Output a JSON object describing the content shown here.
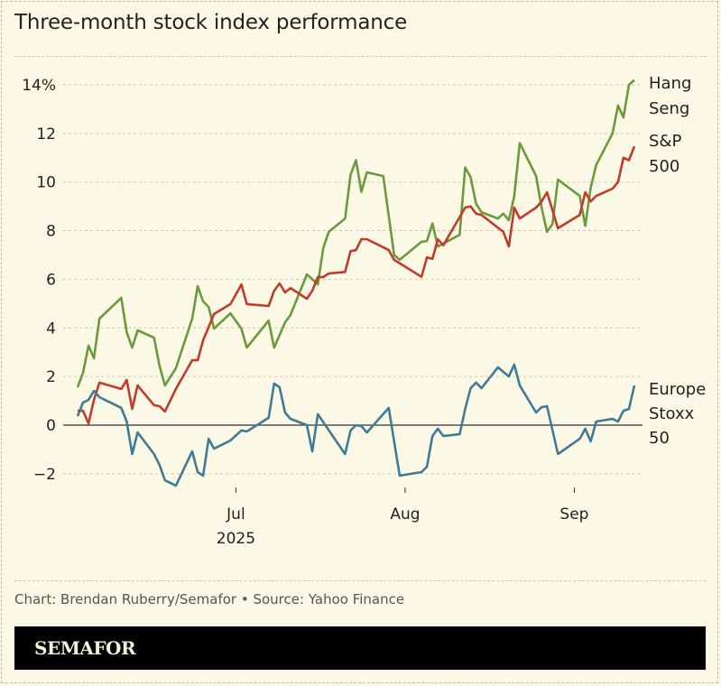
{
  "title": "Three-month stock index performance",
  "source": "Chart: Brendan Ruberry/Semafor • Source: Yahoo Finance",
  "brand": "SEMAFOR",
  "chart_data": {
    "type": "line",
    "title": "Three-month stock index performance",
    "xlabel": "",
    "ylabel": "",
    "xlim": [
      "2025-06-02",
      "2025-09-12"
    ],
    "ylim": [
      -2.5,
      14.5
    ],
    "grid": true,
    "legend": "direct labels at right end of lines",
    "y_ticks": [
      -2,
      0,
      2,
      4,
      6,
      8,
      10,
      12,
      14
    ],
    "y_tick_labels": [
      "−2",
      "0",
      "2",
      "4",
      "6",
      "8",
      "10",
      "12",
      "14%"
    ],
    "x_ticks": [
      {
        "date": "2025-07-01",
        "label": "Jul",
        "sublabel": "2025"
      },
      {
        "date": "2025-08-01",
        "label": "Aug",
        "sublabel": ""
      },
      {
        "date": "2025-09-01",
        "label": "Sep",
        "sublabel": ""
      }
    ],
    "series": [
      {
        "name": "Hang Seng",
        "label_lines": [
          "Hang",
          "Seng"
        ],
        "color": "#6a9a3c",
        "points": [
          [
            "2025-06-02",
            1.56
          ],
          [
            "2025-06-03",
            2.15
          ],
          [
            "2025-06-04",
            3.27
          ],
          [
            "2025-06-05",
            2.75
          ],
          [
            "2025-06-06",
            4.38
          ],
          [
            "2025-06-10",
            5.24
          ],
          [
            "2025-06-11",
            3.82
          ],
          [
            "2025-06-12",
            3.19
          ],
          [
            "2025-06-13",
            3.9
          ],
          [
            "2025-06-16",
            3.6
          ],
          [
            "2025-06-17",
            2.45
          ],
          [
            "2025-06-18",
            1.63
          ],
          [
            "2025-06-20",
            2.34
          ],
          [
            "2025-06-23",
            4.38
          ],
          [
            "2025-06-24",
            5.72
          ],
          [
            "2025-06-25",
            5.09
          ],
          [
            "2025-06-26",
            4.86
          ],
          [
            "2025-06-27",
            3.97
          ],
          [
            "2025-06-30",
            4.6
          ],
          [
            "2025-07-02",
            3.97
          ],
          [
            "2025-07-03",
            3.19
          ],
          [
            "2025-07-07",
            4.3
          ],
          [
            "2025-07-08",
            3.19
          ],
          [
            "2025-07-10",
            4.23
          ],
          [
            "2025-07-11",
            4.53
          ],
          [
            "2025-07-14",
            6.2
          ],
          [
            "2025-07-16",
            5.79
          ],
          [
            "2025-07-17",
            7.28
          ],
          [
            "2025-07-18",
            7.95
          ],
          [
            "2025-07-21",
            8.5
          ],
          [
            "2025-07-22",
            10.3
          ],
          [
            "2025-07-23",
            10.9
          ],
          [
            "2025-07-24",
            9.6
          ],
          [
            "2025-07-25",
            10.4
          ],
          [
            "2025-07-28",
            10.25
          ],
          [
            "2025-07-30",
            7.0
          ],
          [
            "2025-07-31",
            6.8
          ],
          [
            "2025-08-04",
            7.54
          ],
          [
            "2025-08-05",
            7.57
          ],
          [
            "2025-08-06",
            8.3
          ],
          [
            "2025-08-07",
            7.35
          ],
          [
            "2025-08-11",
            7.83
          ],
          [
            "2025-08-12",
            10.6
          ],
          [
            "2025-08-13",
            10.2
          ],
          [
            "2025-08-14",
            9.1
          ],
          [
            "2025-08-15",
            8.76
          ],
          [
            "2025-08-18",
            8.5
          ],
          [
            "2025-08-19",
            8.7
          ],
          [
            "2025-08-20",
            8.43
          ],
          [
            "2025-08-21",
            9.43
          ],
          [
            "2025-08-22",
            11.6
          ],
          [
            "2025-08-25",
            10.25
          ],
          [
            "2025-08-26",
            8.95
          ],
          [
            "2025-08-27",
            7.95
          ],
          [
            "2025-08-28",
            8.28
          ],
          [
            "2025-08-29",
            10.1
          ],
          [
            "2025-09-02",
            9.43
          ],
          [
            "2025-09-03",
            8.2
          ],
          [
            "2025-09-04",
            9.77
          ],
          [
            "2025-09-05",
            10.7
          ],
          [
            "2025-09-08",
            12.0
          ],
          [
            "2025-09-09",
            13.15
          ],
          [
            "2025-09-10",
            12.66
          ],
          [
            "2025-09-11",
            14.0
          ],
          [
            "2025-09-12",
            14.2
          ]
        ]
      },
      {
        "name": "S&P 500",
        "label_lines": [
          "S&P",
          "500"
        ],
        "color": "#c23a2a",
        "points": [
          [
            "2025-06-02",
            0.59
          ],
          [
            "2025-06-03",
            0.59
          ],
          [
            "2025-06-04",
            0.07
          ],
          [
            "2025-06-05",
            1.04
          ],
          [
            "2025-06-06",
            1.75
          ],
          [
            "2025-06-10",
            1.49
          ],
          [
            "2025-06-11",
            1.86
          ],
          [
            "2025-06-12",
            0.67
          ],
          [
            "2025-06-13",
            1.63
          ],
          [
            "2025-06-16",
            0.82
          ],
          [
            "2025-06-17",
            0.78
          ],
          [
            "2025-06-18",
            0.56
          ],
          [
            "2025-06-20",
            1.49
          ],
          [
            "2025-06-23",
            2.67
          ],
          [
            "2025-06-24",
            2.67
          ],
          [
            "2025-06-25",
            3.49
          ],
          [
            "2025-06-27",
            4.57
          ],
          [
            "2025-06-30",
            4.98
          ],
          [
            "2025-07-02",
            5.79
          ],
          [
            "2025-07-03",
            4.98
          ],
          [
            "2025-07-07",
            4.9
          ],
          [
            "2025-07-08",
            5.53
          ],
          [
            "2025-07-09",
            5.83
          ],
          [
            "2025-07-10",
            5.46
          ],
          [
            "2025-07-11",
            5.64
          ],
          [
            "2025-07-14",
            5.2
          ],
          [
            "2025-07-15",
            5.53
          ],
          [
            "2025-07-16",
            6.09
          ],
          [
            "2025-07-17",
            6.09
          ],
          [
            "2025-07-18",
            6.24
          ],
          [
            "2025-07-21",
            6.3
          ],
          [
            "2025-07-22",
            7.16
          ],
          [
            "2025-07-23",
            7.2
          ],
          [
            "2025-07-24",
            7.65
          ],
          [
            "2025-07-25",
            7.65
          ],
          [
            "2025-07-29",
            7.2
          ],
          [
            "2025-07-30",
            6.8
          ],
          [
            "2025-08-04",
            6.1
          ],
          [
            "2025-08-05",
            6.9
          ],
          [
            "2025-08-06",
            6.84
          ],
          [
            "2025-08-07",
            7.65
          ],
          [
            "2025-08-08",
            7.4
          ],
          [
            "2025-08-12",
            8.95
          ],
          [
            "2025-08-13",
            9.0
          ],
          [
            "2025-08-14",
            8.7
          ],
          [
            "2025-08-15",
            8.65
          ],
          [
            "2025-08-19",
            7.95
          ],
          [
            "2025-08-20",
            7.35
          ],
          [
            "2025-08-21",
            8.95
          ],
          [
            "2025-08-22",
            8.5
          ],
          [
            "2025-08-25",
            8.95
          ],
          [
            "2025-08-26",
            9.2
          ],
          [
            "2025-08-27",
            9.58
          ],
          [
            "2025-08-29",
            8.1
          ],
          [
            "2025-09-02",
            8.65
          ],
          [
            "2025-09-03",
            9.58
          ],
          [
            "2025-09-04",
            9.2
          ],
          [
            "2025-09-05",
            9.43
          ],
          [
            "2025-09-08",
            9.73
          ],
          [
            "2025-09-09",
            10.0
          ],
          [
            "2025-09-10",
            11.0
          ],
          [
            "2025-09-11",
            10.9
          ],
          [
            "2025-09-12",
            11.47
          ]
        ]
      },
      {
        "name": "Europe Stoxx 50",
        "label_lines": [
          "Europe",
          "Stoxx",
          "50"
        ],
        "color": "#3f7b95",
        "points": [
          [
            "2025-06-02",
            0.37
          ],
          [
            "2025-06-03",
            0.93
          ],
          [
            "2025-06-04",
            1.04
          ],
          [
            "2025-06-05",
            1.41
          ],
          [
            "2025-06-06",
            1.15
          ],
          [
            "2025-06-10",
            0.71
          ],
          [
            "2025-06-11",
            0.15
          ],
          [
            "2025-06-12",
            -1.19
          ],
          [
            "2025-06-13",
            -0.3
          ],
          [
            "2025-06-16",
            -1.19
          ],
          [
            "2025-06-17",
            -1.63
          ],
          [
            "2025-06-18",
            -2.27
          ],
          [
            "2025-06-20",
            -2.49
          ],
          [
            "2025-06-23",
            -1.08
          ],
          [
            "2025-06-24",
            -1.93
          ],
          [
            "2025-06-25",
            -2.08
          ],
          [
            "2025-06-26",
            -0.56
          ],
          [
            "2025-06-27",
            -0.97
          ],
          [
            "2025-06-30",
            -0.63
          ],
          [
            "2025-07-02",
            -0.22
          ],
          [
            "2025-07-03",
            -0.26
          ],
          [
            "2025-07-07",
            0.3
          ],
          [
            "2025-07-08",
            1.71
          ],
          [
            "2025-07-09",
            1.56
          ],
          [
            "2025-07-10",
            0.52
          ],
          [
            "2025-07-11",
            0.26
          ],
          [
            "2025-07-14",
            0.0
          ],
          [
            "2025-07-15",
            -1.08
          ],
          [
            "2025-07-16",
            0.45
          ],
          [
            "2025-07-21",
            -1.19
          ],
          [
            "2025-07-22",
            -0.22
          ],
          [
            "2025-07-23",
            0.0
          ],
          [
            "2025-07-24",
            -0.04
          ],
          [
            "2025-07-25",
            -0.3
          ],
          [
            "2025-07-29",
            0.71
          ],
          [
            "2025-07-31",
            -2.08
          ],
          [
            "2025-08-04",
            -1.93
          ],
          [
            "2025-08-05",
            -1.71
          ],
          [
            "2025-08-06",
            -0.45
          ],
          [
            "2025-08-07",
            -0.15
          ],
          [
            "2025-08-08",
            -0.45
          ],
          [
            "2025-08-11",
            -0.37
          ],
          [
            "2025-08-12",
            0.67
          ],
          [
            "2025-08-13",
            1.52
          ],
          [
            "2025-08-14",
            1.75
          ],
          [
            "2025-08-15",
            1.52
          ],
          [
            "2025-08-18",
            2.38
          ],
          [
            "2025-08-20",
            2.0
          ],
          [
            "2025-08-21",
            2.49
          ],
          [
            "2025-08-22",
            1.63
          ],
          [
            "2025-08-25",
            0.52
          ],
          [
            "2025-08-26",
            0.74
          ],
          [
            "2025-08-27",
            0.78
          ],
          [
            "2025-08-29",
            -1.19
          ],
          [
            "2025-09-02",
            -0.56
          ],
          [
            "2025-09-03",
            -0.15
          ],
          [
            "2025-09-04",
            -0.67
          ],
          [
            "2025-09-05",
            0.15
          ],
          [
            "2025-09-08",
            0.26
          ],
          [
            "2025-09-09",
            0.15
          ],
          [
            "2025-09-10",
            0.59
          ],
          [
            "2025-09-11",
            0.67
          ],
          [
            "2025-09-12",
            1.63
          ]
        ]
      }
    ]
  }
}
